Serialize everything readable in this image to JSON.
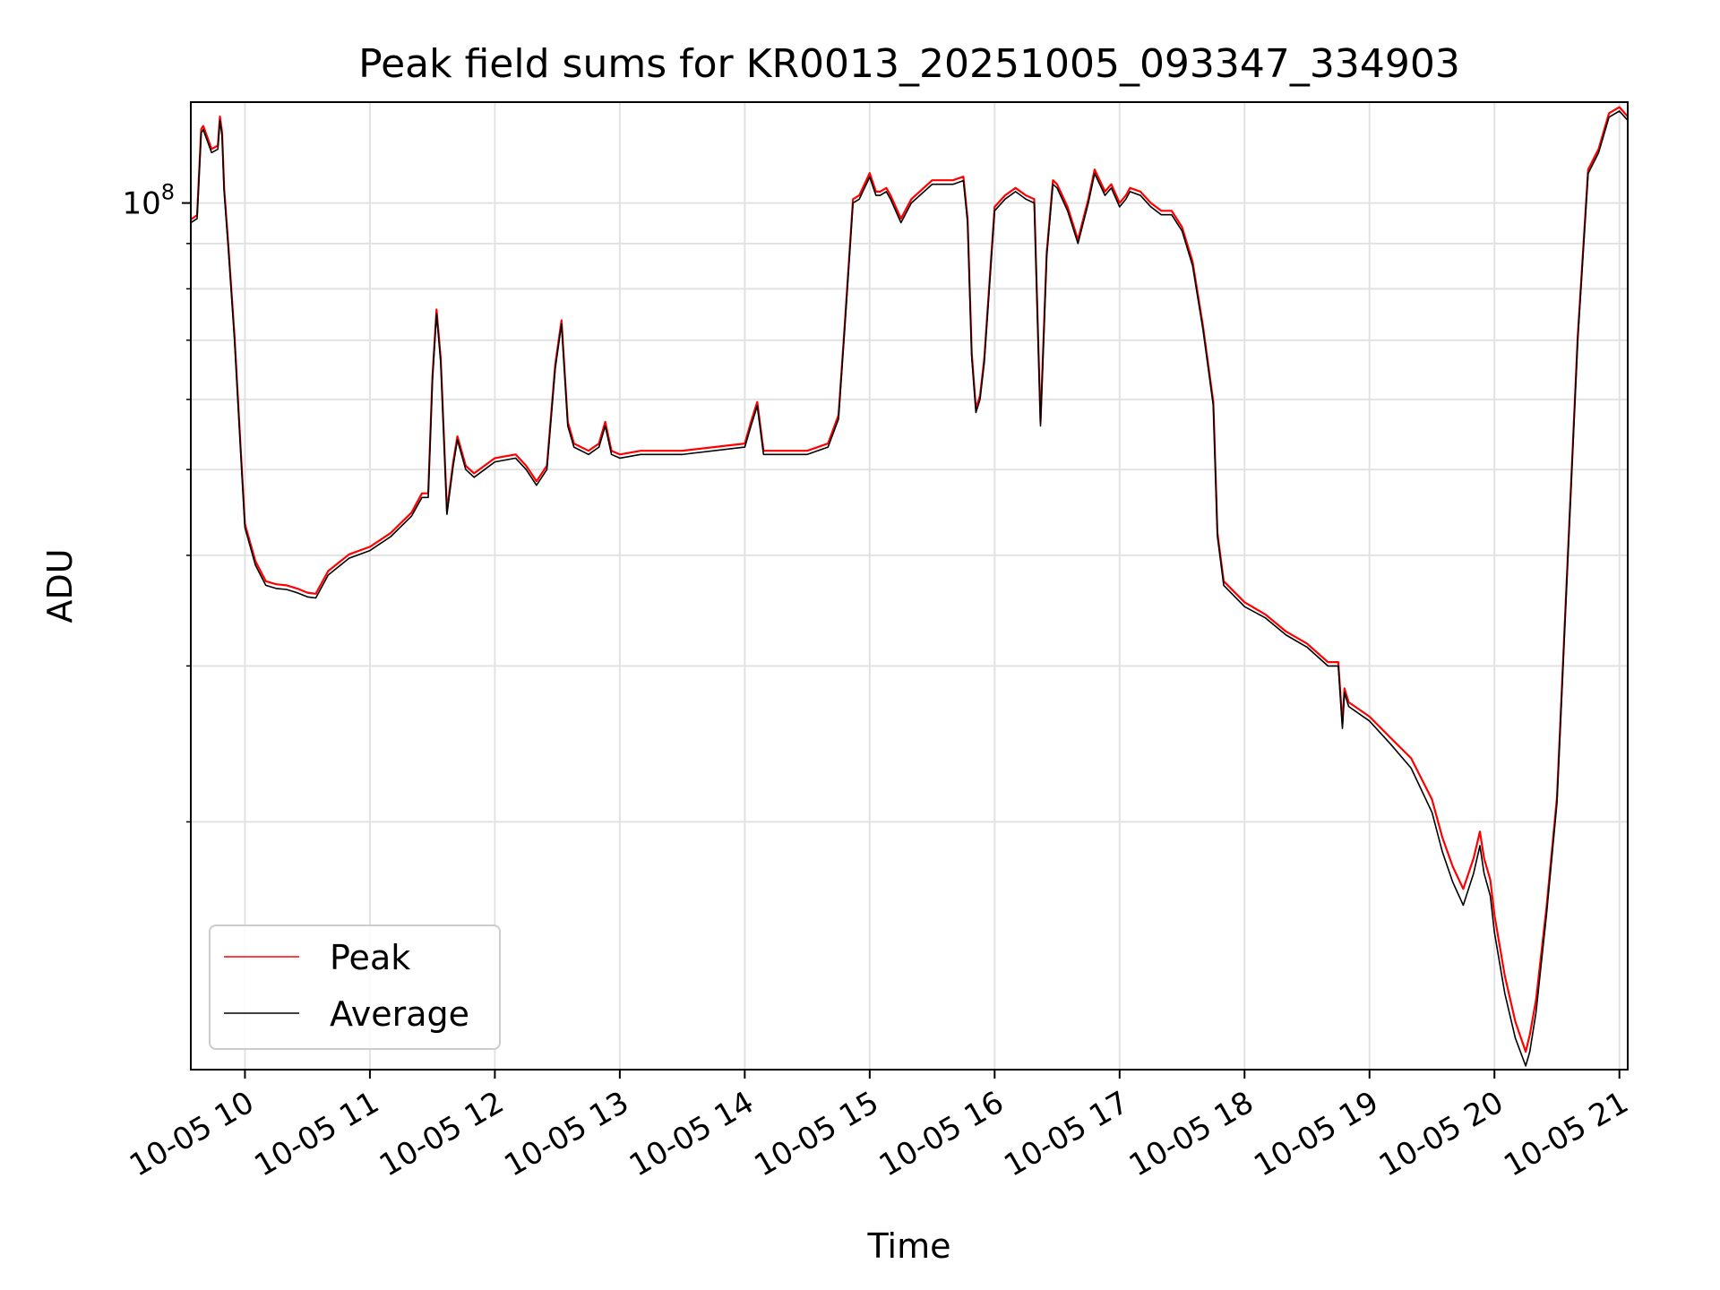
{
  "chart_data": {
    "type": "line",
    "title": "Peak field sums for KR0013_20251005_093347_334903",
    "xlabel": "Time",
    "ylabel": "ADU",
    "y_scale": "log",
    "grid": true,
    "legend_placement": "bottom-left",
    "xlim": [
      "2025-10-05 09:34",
      "2025-10-05 21:04"
    ],
    "ylim": [
      10500000,
      130000000
    ],
    "x_ticks": [
      {
        "value": "2025-10-05 10:00",
        "label": "10-05 10"
      },
      {
        "value": "2025-10-05 11:00",
        "label": "10-05 11"
      },
      {
        "value": "2025-10-05 12:00",
        "label": "10-05 12"
      },
      {
        "value": "2025-10-05 13:00",
        "label": "10-05 13"
      },
      {
        "value": "2025-10-05 14:00",
        "label": "10-05 14"
      },
      {
        "value": "2025-10-05 15:00",
        "label": "10-05 15"
      },
      {
        "value": "2025-10-05 16:00",
        "label": "10-05 16"
      },
      {
        "value": "2025-10-05 17:00",
        "label": "10-05 17"
      },
      {
        "value": "2025-10-05 18:00",
        "label": "10-05 18"
      },
      {
        "value": "2025-10-05 19:00",
        "label": "10-05 19"
      },
      {
        "value": "2025-10-05 20:00",
        "label": "10-05 20"
      },
      {
        "value": "2025-10-05 21:00",
        "label": "10-05 21"
      }
    ],
    "y_ticks_major": [
      {
        "value": 100000000,
        "label_base": "10",
        "label_exp": "8"
      }
    ],
    "y_ticks_minor": [
      20000000,
      30000000,
      40000000,
      50000000,
      60000000,
      70000000,
      80000000,
      90000000
    ],
    "series": [
      {
        "name": "Peak",
        "color": "#ff0000"
      },
      {
        "name": "Average",
        "color": "#000000"
      }
    ],
    "x": [
      "2025-10-05 09:34",
      "2025-10-05 09:37",
      "2025-10-05 09:39",
      "2025-10-05 09:40",
      "2025-10-05 09:44",
      "2025-10-05 09:47",
      "2025-10-05 09:48",
      "2025-10-05 09:49",
      "2025-10-05 09:50",
      "2025-10-05 09:52",
      "2025-10-05 09:55",
      "2025-10-05 09:58",
      "2025-10-05 10:00",
      "2025-10-05 10:05",
      "2025-10-05 10:10",
      "2025-10-05 10:15",
      "2025-10-05 10:20",
      "2025-10-05 10:25",
      "2025-10-05 10:30",
      "2025-10-05 10:34",
      "2025-10-05 10:40",
      "2025-10-05 10:50",
      "2025-10-05 11:00",
      "2025-10-05 11:10",
      "2025-10-05 11:20",
      "2025-10-05 11:25",
      "2025-10-05 11:28",
      "2025-10-05 11:30",
      "2025-10-05 11:32",
      "2025-10-05 11:34",
      "2025-10-05 11:37",
      "2025-10-05 11:40",
      "2025-10-05 11:42",
      "2025-10-05 11:46",
      "2025-10-05 11:50",
      "2025-10-05 12:00",
      "2025-10-05 12:10",
      "2025-10-05 12:15",
      "2025-10-05 12:20",
      "2025-10-05 12:25",
      "2025-10-05 12:29",
      "2025-10-05 12:32",
      "2025-10-05 12:35",
      "2025-10-05 12:38",
      "2025-10-05 12:45",
      "2025-10-05 12:50",
      "2025-10-05 12:53",
      "2025-10-05 12:56",
      "2025-10-05 13:00",
      "2025-10-05 13:10",
      "2025-10-05 13:30",
      "2025-10-05 14:00",
      "2025-10-05 14:03",
      "2025-10-05 14:06",
      "2025-10-05 14:09",
      "2025-10-05 14:12",
      "2025-10-05 14:20",
      "2025-10-05 14:30",
      "2025-10-05 14:40",
      "2025-10-05 14:45",
      "2025-10-05 14:48",
      "2025-10-05 14:52",
      "2025-10-05 14:55",
      "2025-10-05 15:00",
      "2025-10-05 15:03",
      "2025-10-05 15:05",
      "2025-10-05 15:08",
      "2025-10-05 15:10",
      "2025-10-05 15:15",
      "2025-10-05 15:20",
      "2025-10-05 15:30",
      "2025-10-05 15:40",
      "2025-10-05 15:45",
      "2025-10-05 15:47",
      "2025-10-05 15:49",
      "2025-10-05 15:51",
      "2025-10-05 15:53",
      "2025-10-05 15:55",
      "2025-10-05 16:00",
      "2025-10-05 16:05",
      "2025-10-05 16:10",
      "2025-10-05 16:15",
      "2025-10-05 16:19",
      "2025-10-05 16:22",
      "2025-10-05 16:25",
      "2025-10-05 16:28",
      "2025-10-05 16:30",
      "2025-10-05 16:35",
      "2025-10-05 16:40",
      "2025-10-05 16:45",
      "2025-10-05 16:48",
      "2025-10-05 16:53",
      "2025-10-05 16:56",
      "2025-10-05 17:00",
      "2025-10-05 17:03",
      "2025-10-05 17:05",
      "2025-10-05 17:10",
      "2025-10-05 17:15",
      "2025-10-05 17:20",
      "2025-10-05 17:25",
      "2025-10-05 17:30",
      "2025-10-05 17:35",
      "2025-10-05 17:40",
      "2025-10-05 17:45",
      "2025-10-05 17:47",
      "2025-10-05 17:50",
      "2025-10-05 18:00",
      "2025-10-05 18:10",
      "2025-10-05 18:20",
      "2025-10-05 18:30",
      "2025-10-05 18:40",
      "2025-10-05 18:45",
      "2025-10-05 18:47",
      "2025-10-05 18:48",
      "2025-10-05 18:50",
      "2025-10-05 19:00",
      "2025-10-05 19:10",
      "2025-10-05 19:20",
      "2025-10-05 19:30",
      "2025-10-05 19:35",
      "2025-10-05 19:40",
      "2025-10-05 19:45",
      "2025-10-05 19:50",
      "2025-10-05 19:53",
      "2025-10-05 19:55",
      "2025-10-05 19:58",
      "2025-10-05 20:00",
      "2025-10-05 20:05",
      "2025-10-05 20:10",
      "2025-10-05 20:15",
      "2025-10-05 20:17",
      "2025-10-05 20:20",
      "2025-10-05 20:25",
      "2025-10-05 20:30",
      "2025-10-05 20:35",
      "2025-10-05 20:40",
      "2025-10-05 20:45",
      "2025-10-05 20:50",
      "2025-10-05 20:55",
      "2025-10-05 21:00",
      "2025-10-05 21:04"
    ],
    "average_values": [
      95000000,
      96000000,
      120000000,
      121000000,
      114000000,
      115000000,
      124000000,
      119000000,
      103000000,
      89000000,
      70000000,
      52000000,
      43000000,
      39000000,
      37000000,
      36700000,
      36600000,
      36300000,
      35900000,
      35800000,
      38000000,
      39700000,
      40500000,
      42000000,
      44300000,
      46500000,
      46500000,
      63000000,
      75000000,
      66000000,
      44500000,
      50500000,
      54000000,
      50000000,
      49000000,
      51000000,
      51500000,
      50000000,
      48000000,
      50000000,
      65000000,
      73000000,
      56000000,
      53000000,
      52000000,
      53000000,
      56000000,
      52000000,
      51500000,
      52000000,
      52000000,
      53000000,
      56000000,
      59000000,
      52000000,
      52000000,
      52000000,
      52000000,
      53000000,
      57000000,
      72000000,
      100000000,
      101000000,
      107000000,
      102000000,
      102000000,
      103000000,
      101000000,
      95000000,
      100000000,
      105000000,
      105000000,
      106000000,
      95000000,
      67000000,
      58000000,
      60000000,
      66000000,
      98000000,
      101000000,
      103000000,
      101000000,
      100000000,
      56000000,
      87000000,
      105000000,
      104000000,
      98000000,
      90000000,
      100000000,
      108000000,
      102000000,
      104000000,
      99000000,
      101000000,
      103000000,
      102000000,
      99000000,
      97000000,
      97000000,
      93000000,
      85000000,
      72000000,
      59000000,
      42000000,
      37000000,
      35000000,
      34000000,
      32500000,
      31500000,
      30000000,
      30000000,
      25500000,
      28000000,
      27000000,
      26000000,
      24500000,
      23000000,
      20500000,
      18500000,
      17100000,
      16100000,
      17500000,
      18800000,
      17500000,
      16500000,
      15000000,
      12800000,
      11400000,
      10600000,
      11000000,
      12200000,
      15700000,
      21000000,
      38500000,
      70000000,
      108000000,
      114000000,
      125000000,
      127000000,
      124000000,
      127000000,
      120000000
    ],
    "peak_values": [
      95800000,
      96900000,
      121200000,
      122200000,
      115100000,
      116100000,
      125200000,
      120200000,
      104000000,
      89900000,
      70700000,
      52500000,
      43400000,
      39400000,
      37400000,
      37100000,
      37000000,
      36700000,
      36300000,
      36200000,
      38400000,
      40100000,
      40900000,
      42400000,
      44700000,
      47000000,
      47000000,
      63600000,
      75800000,
      66700000,
      44900000,
      51000000,
      54500000,
      50500000,
      49500000,
      51500000,
      52000000,
      50500000,
      48500000,
      50500000,
      65700000,
      73700000,
      56600000,
      53500000,
      52500000,
      53500000,
      56600000,
      52500000,
      52000000,
      52500000,
      52500000,
      53500000,
      56600000,
      59600000,
      52500000,
      52500000,
      52500000,
      52500000,
      53500000,
      57600000,
      72700000,
      101000000,
      102000000,
      108100000,
      103000000,
      103000000,
      104000000,
      102000000,
      96000000,
      101000000,
      106100000,
      106100000,
      107100000,
      96000000,
      67700000,
      58600000,
      60600000,
      66700000,
      99000000,
      102000000,
      104000000,
      102000000,
      101000000,
      56600000,
      87900000,
      106100000,
      105000000,
      99000000,
      90900000,
      101000000,
      109100000,
      103000000,
      105000000,
      100000000,
      102000000,
      104000000,
      103000000,
      100000000,
      98000000,
      98000000,
      93900000,
      85900000,
      72700000,
      59600000,
      42400000,
      37400000,
      35400000,
      34300000,
      32800000,
      31800000,
      30300000,
      30300000,
      25800000,
      28300000,
      27300000,
      26300000,
      24900000,
      23600000,
      21200000,
      19200000,
      17800000,
      16800000,
      18200000,
      19500000,
      18200000,
      17200000,
      15700000,
      13400000,
      11900000,
      11000000,
      11500000,
      12600000,
      16000000,
      21300000,
      38900000,
      70700000,
      109100000,
      115100000,
      126300000,
      128300000,
      125200000,
      128300000,
      121200000
    ]
  }
}
